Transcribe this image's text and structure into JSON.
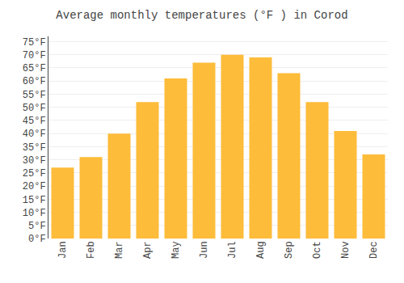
{
  "chart_data": {
    "type": "bar",
    "title": "Average monthly temperatures (°F ) in Corod",
    "categories": [
      "Jan",
      "Feb",
      "Mar",
      "Apr",
      "May",
      "Jun",
      "Jul",
      "Aug",
      "Sep",
      "Oct",
      "Nov",
      "Dec"
    ],
    "values": [
      27,
      31,
      40,
      52,
      61,
      67,
      70,
      69,
      63,
      52,
      41,
      32
    ],
    "color": "#FDBC3A",
    "ylim": [
      0,
      77
    ],
    "yticks": [
      {
        "value": 0,
        "label": "0°F"
      },
      {
        "value": 5,
        "label": "5°F"
      },
      {
        "value": 10,
        "label": "10°F"
      },
      {
        "value": 15,
        "label": "15°F"
      },
      {
        "value": 20,
        "label": "20°F"
      },
      {
        "value": 25,
        "label": "25°F"
      },
      {
        "value": 30,
        "label": "30°F"
      },
      {
        "value": 35,
        "label": "35°F"
      },
      {
        "value": 40,
        "label": "40°F"
      },
      {
        "value": 45,
        "label": "45°F"
      },
      {
        "value": 50,
        "label": "50°F"
      },
      {
        "value": 55,
        "label": "55°F"
      },
      {
        "value": 60,
        "label": "60°F"
      },
      {
        "value": 65,
        "label": "65°F"
      },
      {
        "value": 70,
        "label": "70°F"
      },
      {
        "value": 75,
        "label": "75°F"
      }
    ],
    "grid": true
  }
}
